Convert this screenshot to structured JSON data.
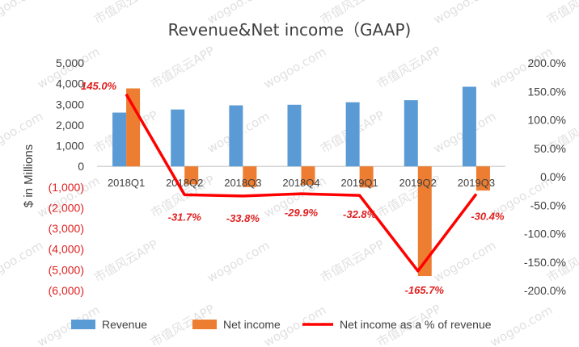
{
  "chart_data": {
    "type": "bar",
    "title": "Revenue&Net income（GAAP)",
    "ylabel": "$ in Millions",
    "categories": [
      "2018Q1",
      "2018Q2",
      "2018Q3",
      "2018Q4",
      "2019Q1",
      "2019Q2",
      "2019Q3"
    ],
    "series": [
      {
        "name": "Revenue",
        "type": "bar",
        "color": "#5b9bd5",
        "axis": "left",
        "values": [
          2600,
          2750,
          2950,
          2980,
          3100,
          3200,
          3850
        ]
      },
      {
        "name": "Net income",
        "type": "bar",
        "color": "#ed7d31",
        "axis": "left",
        "values": [
          3770,
          -870,
          -1000,
          -890,
          -1020,
          -5300,
          -1170
        ]
      },
      {
        "name": "Net income as a % of revenue",
        "type": "line",
        "color": "#ff0000",
        "axis": "right",
        "values": [
          145.0,
          -31.7,
          -33.8,
          -29.9,
          -32.8,
          -165.7,
          -30.4
        ],
        "labels": [
          "145.0%",
          "-31.7%",
          "-33.8%",
          "-29.9%",
          "-32.8%",
          "-165.7%",
          "-30.4%"
        ]
      }
    ],
    "y_left": {
      "ylim": [
        -6000,
        5000
      ],
      "ticks": [
        5000,
        4000,
        3000,
        2000,
        1000,
        0,
        -1000,
        -2000,
        -3000,
        -4000,
        -5000,
        -6000
      ],
      "tick_labels": [
        "5,000",
        "4,000",
        "3,000",
        "2,000",
        "1,000",
        "0",
        "(1,000)",
        "(2,000)",
        "(3,000)",
        "(4,000)",
        "(5,000)",
        "(6,000)"
      ]
    },
    "y_right": {
      "ylim": [
        -200,
        200
      ],
      "ticks": [
        200,
        150,
        100,
        50,
        0,
        -50,
        -100,
        -150,
        -200
      ],
      "tick_labels": [
        "200.0%",
        "150.0%",
        "100.0%",
        "50.0%",
        "0.0%",
        "-50.0%",
        "-100.0%",
        "-150.0%",
        "-200.0%"
      ]
    },
    "grid": false,
    "legend_position": "bottom"
  },
  "watermark": {
    "texts": [
      "wogoo.com",
      "市值风云APP"
    ]
  }
}
